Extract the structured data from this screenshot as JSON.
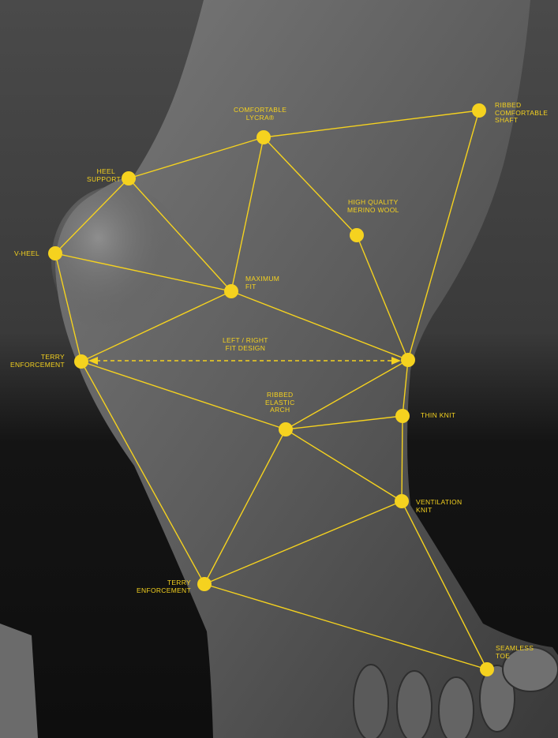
{
  "accent_color": "#f5d21f",
  "labels": {
    "comfortable_lycra": "COMFORTABLE\nLYCRA®",
    "ribbed_shaft": "RIBBED\nCOMFORTABLE\nSHAFT",
    "heel_support": "HEEL\nSUPPORT",
    "merino_wool": "HIGH QUALITY\nMERINO WOOL",
    "v_heel": "V-HEEL",
    "maximum_fit": "MAXIMUM\nFIT",
    "left_right_fit": "LEFT / RIGHT\nFIT DESIGN",
    "terry_upper": "TERRY\nENFORCEMENT",
    "ribbed_arch": "RIBBED\nELASTIC\nARCH",
    "thin_knit": "THIN KNIT",
    "ventilation_knit": "VENTILATION\nKNIT",
    "terry_lower": "TERRY\nENFORCEMENT",
    "seamless_toe": "SEAMLESS\nTOE"
  }
}
